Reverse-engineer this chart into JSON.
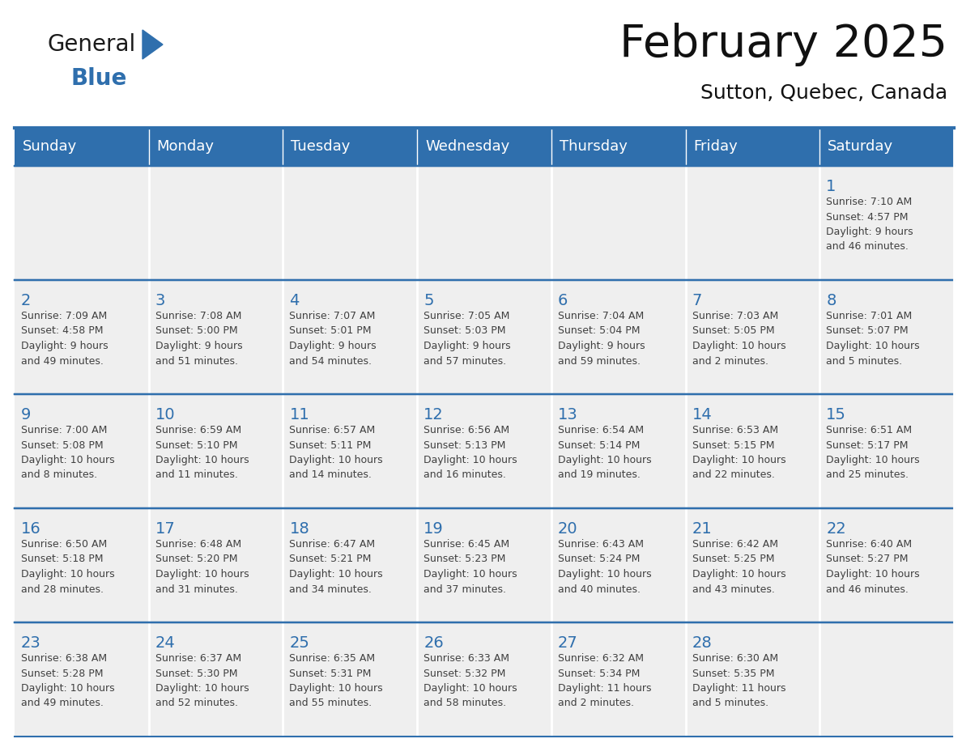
{
  "title": "February 2025",
  "subtitle": "Sutton, Quebec, Canada",
  "header_bg_color": "#2F6FAD",
  "header_text_color": "#FFFFFF",
  "cell_bg_color": "#EFEFEF",
  "cell_content_bg_color": "#FFFFFF",
  "day_number_color": "#2F6FAD",
  "info_text_color": "#404040",
  "border_color": "#2F6FAD",
  "days_of_week": [
    "Sunday",
    "Monday",
    "Tuesday",
    "Wednesday",
    "Thursday",
    "Friday",
    "Saturday"
  ],
  "weeks": [
    [
      {
        "num": "",
        "info": ""
      },
      {
        "num": "",
        "info": ""
      },
      {
        "num": "",
        "info": ""
      },
      {
        "num": "",
        "info": ""
      },
      {
        "num": "",
        "info": ""
      },
      {
        "num": "",
        "info": ""
      },
      {
        "num": "1",
        "info": "Sunrise: 7:10 AM\nSunset: 4:57 PM\nDaylight: 9 hours\nand 46 minutes."
      }
    ],
    [
      {
        "num": "2",
        "info": "Sunrise: 7:09 AM\nSunset: 4:58 PM\nDaylight: 9 hours\nand 49 minutes."
      },
      {
        "num": "3",
        "info": "Sunrise: 7:08 AM\nSunset: 5:00 PM\nDaylight: 9 hours\nand 51 minutes."
      },
      {
        "num": "4",
        "info": "Sunrise: 7:07 AM\nSunset: 5:01 PM\nDaylight: 9 hours\nand 54 minutes."
      },
      {
        "num": "5",
        "info": "Sunrise: 7:05 AM\nSunset: 5:03 PM\nDaylight: 9 hours\nand 57 minutes."
      },
      {
        "num": "6",
        "info": "Sunrise: 7:04 AM\nSunset: 5:04 PM\nDaylight: 9 hours\nand 59 minutes."
      },
      {
        "num": "7",
        "info": "Sunrise: 7:03 AM\nSunset: 5:05 PM\nDaylight: 10 hours\nand 2 minutes."
      },
      {
        "num": "8",
        "info": "Sunrise: 7:01 AM\nSunset: 5:07 PM\nDaylight: 10 hours\nand 5 minutes."
      }
    ],
    [
      {
        "num": "9",
        "info": "Sunrise: 7:00 AM\nSunset: 5:08 PM\nDaylight: 10 hours\nand 8 minutes."
      },
      {
        "num": "10",
        "info": "Sunrise: 6:59 AM\nSunset: 5:10 PM\nDaylight: 10 hours\nand 11 minutes."
      },
      {
        "num": "11",
        "info": "Sunrise: 6:57 AM\nSunset: 5:11 PM\nDaylight: 10 hours\nand 14 minutes."
      },
      {
        "num": "12",
        "info": "Sunrise: 6:56 AM\nSunset: 5:13 PM\nDaylight: 10 hours\nand 16 minutes."
      },
      {
        "num": "13",
        "info": "Sunrise: 6:54 AM\nSunset: 5:14 PM\nDaylight: 10 hours\nand 19 minutes."
      },
      {
        "num": "14",
        "info": "Sunrise: 6:53 AM\nSunset: 5:15 PM\nDaylight: 10 hours\nand 22 minutes."
      },
      {
        "num": "15",
        "info": "Sunrise: 6:51 AM\nSunset: 5:17 PM\nDaylight: 10 hours\nand 25 minutes."
      }
    ],
    [
      {
        "num": "16",
        "info": "Sunrise: 6:50 AM\nSunset: 5:18 PM\nDaylight: 10 hours\nand 28 minutes."
      },
      {
        "num": "17",
        "info": "Sunrise: 6:48 AM\nSunset: 5:20 PM\nDaylight: 10 hours\nand 31 minutes."
      },
      {
        "num": "18",
        "info": "Sunrise: 6:47 AM\nSunset: 5:21 PM\nDaylight: 10 hours\nand 34 minutes."
      },
      {
        "num": "19",
        "info": "Sunrise: 6:45 AM\nSunset: 5:23 PM\nDaylight: 10 hours\nand 37 minutes."
      },
      {
        "num": "20",
        "info": "Sunrise: 6:43 AM\nSunset: 5:24 PM\nDaylight: 10 hours\nand 40 minutes."
      },
      {
        "num": "21",
        "info": "Sunrise: 6:42 AM\nSunset: 5:25 PM\nDaylight: 10 hours\nand 43 minutes."
      },
      {
        "num": "22",
        "info": "Sunrise: 6:40 AM\nSunset: 5:27 PM\nDaylight: 10 hours\nand 46 minutes."
      }
    ],
    [
      {
        "num": "23",
        "info": "Sunrise: 6:38 AM\nSunset: 5:28 PM\nDaylight: 10 hours\nand 49 minutes."
      },
      {
        "num": "24",
        "info": "Sunrise: 6:37 AM\nSunset: 5:30 PM\nDaylight: 10 hours\nand 52 minutes."
      },
      {
        "num": "25",
        "info": "Sunrise: 6:35 AM\nSunset: 5:31 PM\nDaylight: 10 hours\nand 55 minutes."
      },
      {
        "num": "26",
        "info": "Sunrise: 6:33 AM\nSunset: 5:32 PM\nDaylight: 10 hours\nand 58 minutes."
      },
      {
        "num": "27",
        "info": "Sunrise: 6:32 AM\nSunset: 5:34 PM\nDaylight: 11 hours\nand 2 minutes."
      },
      {
        "num": "28",
        "info": "Sunrise: 6:30 AM\nSunset: 5:35 PM\nDaylight: 11 hours\nand 5 minutes."
      },
      {
        "num": "",
        "info": ""
      }
    ]
  ],
  "logo_general_color": "#1a1a1a",
  "logo_blue_color": "#2F6FAD",
  "logo_triangle_color": "#2F6FAD",
  "title_fontsize": 40,
  "subtitle_fontsize": 18,
  "dow_fontsize": 13,
  "day_num_fontsize": 14,
  "info_fontsize": 9
}
